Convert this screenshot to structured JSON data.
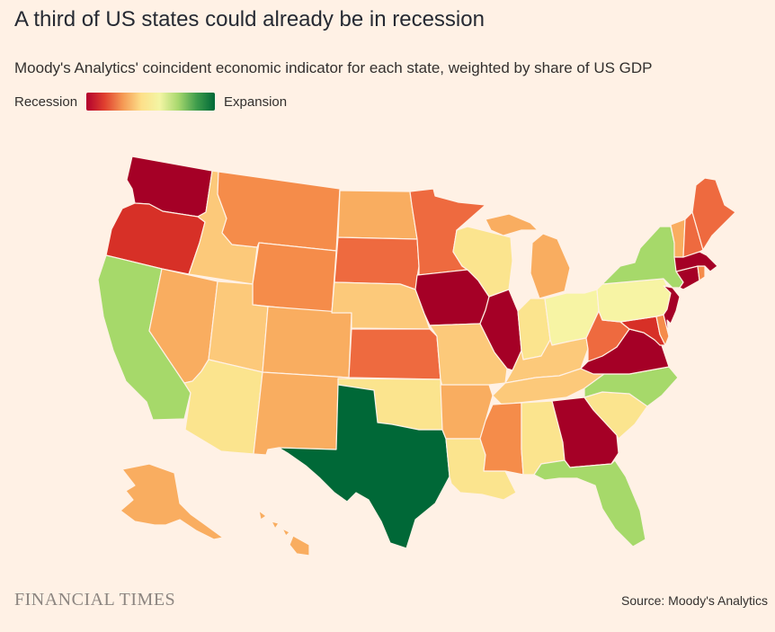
{
  "title": "A third of US states could already be in recession",
  "subtitle": "Moody's Analytics' coincident economic indicator for each state, weighted by share of US GDP",
  "legend": {
    "left_label": "Recession",
    "right_label": "Expansion",
    "scale_colors": [
      "#b3002d",
      "#e0402f",
      "#f59a55",
      "#fde08a",
      "#f3f5a4",
      "#a8d86e",
      "#3f9d4c",
      "#006837"
    ]
  },
  "logo": "FINANCIAL TIMES",
  "source": "Source: Moody's Analytics",
  "colors": {
    "background": "#fff1e5",
    "deep_recession": "#a50026",
    "recession": "#d73027",
    "orange_red": "#ee6a3f",
    "orange": "#f58c4a",
    "light_orange": "#f9ad60",
    "pale_orange": "#fcc97a",
    "pale_yellow": "#fbe48e",
    "yellow": "#f7f4a4",
    "light_green": "#a6d96a",
    "dark_green": "#006837"
  },
  "states": [
    {
      "code": "WA",
      "category": "deep_recession"
    },
    {
      "code": "OR",
      "category": "recession"
    },
    {
      "code": "CA",
      "category": "light_green"
    },
    {
      "code": "ID",
      "category": "pale_orange"
    },
    {
      "code": "NV",
      "category": "light_orange"
    },
    {
      "code": "MT",
      "category": "orange"
    },
    {
      "code": "WY",
      "category": "orange"
    },
    {
      "code": "UT",
      "category": "pale_orange"
    },
    {
      "code": "AZ",
      "category": "pale_yellow"
    },
    {
      "code": "CO",
      "category": "light_orange"
    },
    {
      "code": "NM",
      "category": "light_orange"
    },
    {
      "code": "ND",
      "category": "light_orange"
    },
    {
      "code": "SD",
      "category": "orange_red"
    },
    {
      "code": "NE",
      "category": "pale_orange"
    },
    {
      "code": "KS",
      "category": "orange_red"
    },
    {
      "code": "OK",
      "category": "pale_yellow"
    },
    {
      "code": "TX",
      "category": "dark_green"
    },
    {
      "code": "MN",
      "category": "orange_red"
    },
    {
      "code": "IA",
      "category": "deep_recession"
    },
    {
      "code": "MO",
      "category": "pale_orange"
    },
    {
      "code": "AR",
      "category": "light_orange"
    },
    {
      "code": "LA",
      "category": "pale_yellow"
    },
    {
      "code": "WI",
      "category": "pale_yellow"
    },
    {
      "code": "IL",
      "category": "deep_recession"
    },
    {
      "code": "MI",
      "category": "light_orange"
    },
    {
      "code": "IN",
      "category": "pale_yellow"
    },
    {
      "code": "OH",
      "category": "yellow"
    },
    {
      "code": "KY",
      "category": "pale_orange"
    },
    {
      "code": "TN",
      "category": "pale_orange"
    },
    {
      "code": "MS",
      "category": "orange"
    },
    {
      "code": "AL",
      "category": "pale_yellow"
    },
    {
      "code": "GA",
      "category": "deep_recession"
    },
    {
      "code": "FL",
      "category": "light_green"
    },
    {
      "code": "SC",
      "category": "pale_yellow"
    },
    {
      "code": "NC",
      "category": "light_green"
    },
    {
      "code": "VA",
      "category": "deep_recession"
    },
    {
      "code": "WV",
      "category": "orange_red"
    },
    {
      "code": "MD",
      "category": "recession"
    },
    {
      "code": "DE",
      "category": "orange"
    },
    {
      "code": "PA",
      "category": "yellow"
    },
    {
      "code": "NJ",
      "category": "deep_recession"
    },
    {
      "code": "NY",
      "category": "light_green"
    },
    {
      "code": "CT",
      "category": "deep_recession"
    },
    {
      "code": "RI",
      "category": "orange"
    },
    {
      "code": "MA",
      "category": "deep_recession"
    },
    {
      "code": "VT",
      "category": "light_orange"
    },
    {
      "code": "NH",
      "category": "orange_red"
    },
    {
      "code": "ME",
      "category": "orange_red"
    },
    {
      "code": "AK",
      "category": "light_orange"
    },
    {
      "code": "HI",
      "category": "light_orange"
    }
  ]
}
